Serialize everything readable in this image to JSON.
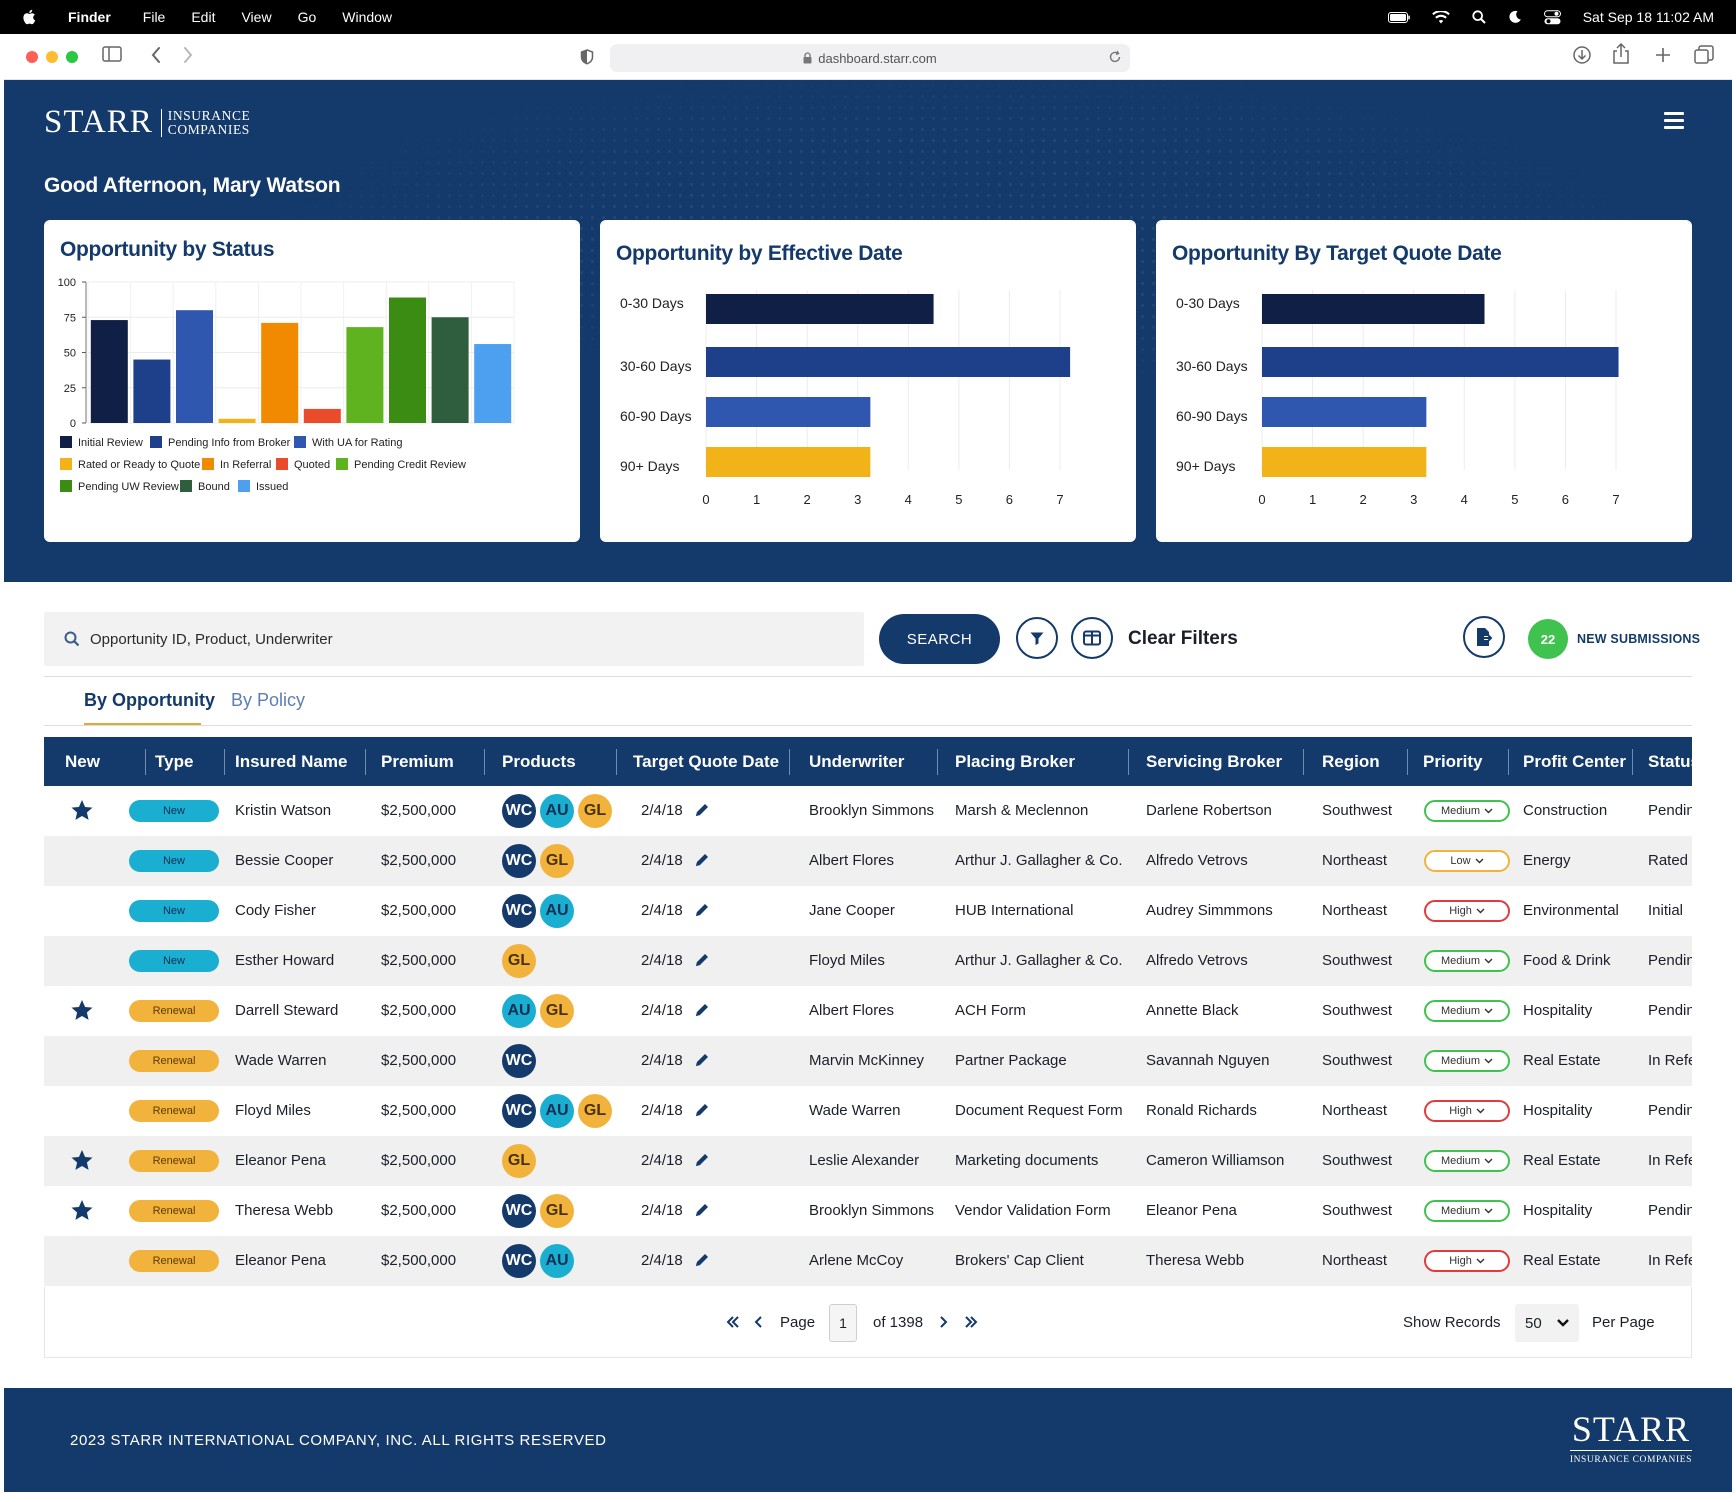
{
  "menubar": {
    "app": "Finder",
    "items": [
      "File",
      "Edit",
      "View",
      "Go",
      "Window"
    ],
    "datetime": "Sat Sep 18  11:02 AM"
  },
  "browser": {
    "url": "dashboard.starr.com"
  },
  "brand": {
    "name": "STARR",
    "line1": "INSURANCE",
    "line2": "COMPANIES"
  },
  "greeting": "Good Afternoon, Mary Watson",
  "colors": {
    "navy": "#143a6b",
    "initial_review": "#0f1f45",
    "pending_info": "#1e3f8a",
    "with_ua": "#2f57b0",
    "rated_ready": "#f2b319",
    "in_referral": "#f28a00",
    "quoted": "#ea4b2a",
    "pending_credit": "#5fb31e",
    "pending_uw": "#3b8c12",
    "bound": "#2e5e3e",
    "issued": "#4da0f0"
  },
  "chart_data": [
    {
      "type": "bar",
      "title": "Opportunity by Status",
      "ylim": [
        0,
        100
      ],
      "yticks": [
        "0",
        "25",
        "50",
        "75",
        "100"
      ],
      "categories": [
        "Initial Review",
        "Pending Info from Broker",
        "With UA for Rating",
        "Rated or Ready to Quote",
        "In Referral",
        "Quoted",
        "Pending Credit Review",
        "Pending UW Review",
        "Bound",
        "Issued"
      ],
      "values": [
        73,
        45,
        80,
        3,
        71,
        10,
        68,
        89,
        75,
        56
      ],
      "legend": [
        "Initial Review",
        "Pending Info from Broker",
        "With UA for Rating",
        "Rated or Ready to Quote",
        "In Referral",
        "Quoted",
        "Pending Credit Review",
        "Pending UW Review",
        "Bound",
        "Issued"
      ],
      "grid": true
    },
    {
      "type": "bar",
      "orientation": "horizontal",
      "title": "Opportunity by Effective Date",
      "categories": [
        "0-30 Days",
        "30-60 Days",
        "60-90 Days",
        "90+ Days"
      ],
      "values": [
        4.5,
        7.2,
        3.25,
        3.25
      ],
      "xlim": [
        0,
        7
      ],
      "xticks": [
        "0",
        "1",
        "2",
        "3",
        "4",
        "5",
        "6",
        "7"
      ],
      "grid": true
    },
    {
      "type": "bar",
      "orientation": "horizontal",
      "title": "Opportunity By Target Quote Date",
      "categories": [
        "0-30 Days",
        "30-60 Days",
        "60-90 Days",
        "90+ Days"
      ],
      "values": [
        4.4,
        7.05,
        3.25,
        3.25
      ],
      "xlim": [
        0,
        7
      ],
      "xticks": [
        "0",
        "1",
        "2",
        "3",
        "4",
        "5",
        "6",
        "7"
      ],
      "grid": true
    }
  ],
  "search": {
    "placeholder": "Opportunity ID, Product, Underwriter",
    "button": "SEARCH"
  },
  "clear_filters": "Clear Filters",
  "new_submissions": {
    "count": "22",
    "label": "NEW SUBMISSIONS"
  },
  "tabs": [
    "By Opportunity",
    "By Policy"
  ],
  "table": {
    "headers": [
      "New",
      "Type",
      "Insured Name",
      "Premium",
      "Products",
      "Target Quote Date",
      "Underwriter",
      "Placing Broker",
      "Servicing Broker",
      "Region",
      "Priority",
      "Profit Center",
      "Status"
    ],
    "rows": [
      {
        "star": true,
        "type": "New",
        "insured": "Kristin Watson",
        "premium": "$2,500,000",
        "products": [
          "WC",
          "AU",
          "GL"
        ],
        "date": "2/4/18",
        "underwriter": "Brooklyn Simmons",
        "placing": "Marsh & Meclennon",
        "servicing": "Darlene Robertson",
        "region": "Southwest",
        "priority": "Medium",
        "profit": "Construction",
        "status": "Pending"
      },
      {
        "star": false,
        "type": "New",
        "insured": "Bessie Cooper",
        "premium": "$2,500,000",
        "products": [
          "WC",
          "GL"
        ],
        "date": "2/4/18",
        "underwriter": "Albert Flores",
        "placing": "Arthur J. Gallagher & Co.",
        "servicing": "Alfredo Vetrovs",
        "region": "Northeast",
        "priority": "Low",
        "profit": "Energy",
        "status": "Rated"
      },
      {
        "star": false,
        "type": "New",
        "insured": "Cody Fisher",
        "premium": "$2,500,000",
        "products": [
          "WC",
          "AU"
        ],
        "date": "2/4/18",
        "underwriter": "Jane Cooper",
        "placing": "HUB International",
        "servicing": "Audrey Simmmons",
        "region": "Northeast",
        "priority": "High",
        "profit": "Environmental",
        "status": "Initial"
      },
      {
        "star": false,
        "type": "New",
        "insured": "Esther Howard",
        "premium": "$2,500,000",
        "products": [
          "GL"
        ],
        "date": "2/4/18",
        "underwriter": "Floyd Miles",
        "placing": "Arthur J. Gallagher & Co.",
        "servicing": "Alfredo Vetrovs",
        "region": "Southwest",
        "priority": "Medium",
        "profit": "Food & Drink",
        "status": "Pending"
      },
      {
        "star": true,
        "type": "Renewal",
        "insured": "Darrell Steward",
        "premium": "$2,500,000",
        "products": [
          "AU",
          "GL"
        ],
        "date": "2/4/18",
        "underwriter": "Albert Flores",
        "placing": "ACH Form",
        "servicing": "Annette Black",
        "region": "Southwest",
        "priority": "Medium",
        "profit": "Hospitality",
        "status": "Pending"
      },
      {
        "star": false,
        "type": "Renewal",
        "insured": "Wade Warren",
        "premium": "$2,500,000",
        "products": [
          "WC"
        ],
        "date": "2/4/18",
        "underwriter": "Marvin McKinney",
        "placing": "Partner Package",
        "servicing": "Savannah Nguyen",
        "region": "Southwest",
        "priority": "Medium",
        "profit": "Real Estate",
        "status": "In Referral"
      },
      {
        "star": false,
        "type": "Renewal",
        "insured": "Floyd Miles",
        "premium": "$2,500,000",
        "products": [
          "WC",
          "AU",
          "GL"
        ],
        "date": "2/4/18",
        "underwriter": "Wade Warren",
        "placing": "Document Request Form",
        "servicing": "Ronald Richards",
        "region": "Northeast",
        "priority": "High",
        "profit": "Hospitality",
        "status": "Pending"
      },
      {
        "star": true,
        "type": "Renewal",
        "insured": "Eleanor Pena",
        "premium": "$2,500,000",
        "products": [
          "GL"
        ],
        "date": "2/4/18",
        "underwriter": "Leslie Alexander",
        "placing": "Marketing documents",
        "servicing": "Cameron Williamson",
        "region": "Southwest",
        "priority": "Medium",
        "profit": "Real Estate",
        "status": "In Referral"
      },
      {
        "star": true,
        "type": "Renewal",
        "insured": "Theresa Webb",
        "premium": "$2,500,000",
        "products": [
          "WC",
          "GL"
        ],
        "date": "2/4/18",
        "underwriter": "Brooklyn Simmons",
        "placing": "Vendor Validation Form",
        "servicing": "Eleanor Pena",
        "region": "Southwest",
        "priority": "Medium",
        "profit": "Hospitality",
        "status": "Pending"
      },
      {
        "star": false,
        "type": "Renewal",
        "insured": "Eleanor Pena",
        "premium": "$2,500,000",
        "products": [
          "WC",
          "AU"
        ],
        "date": "2/4/18",
        "underwriter": "Arlene McCoy",
        "placing": "Brokers' Cap Client",
        "servicing": "Theresa Webb",
        "region": "Northeast",
        "priority": "High",
        "profit": "Real Estate",
        "status": "In Referral"
      }
    ]
  },
  "pagination": {
    "page_label": "Page",
    "page": "1",
    "of_label": "of 1398",
    "show_records": "Show Records",
    "per_page_value": "50",
    "per_page_label": "Per Page"
  },
  "footer": {
    "copyright": "2023 STARR INTERNATIONAL COMPANY, INC. ALL RIGHTS RESERVED",
    "logo_big": "STARR",
    "logo_small": "INSURANCE COMPANIES"
  }
}
